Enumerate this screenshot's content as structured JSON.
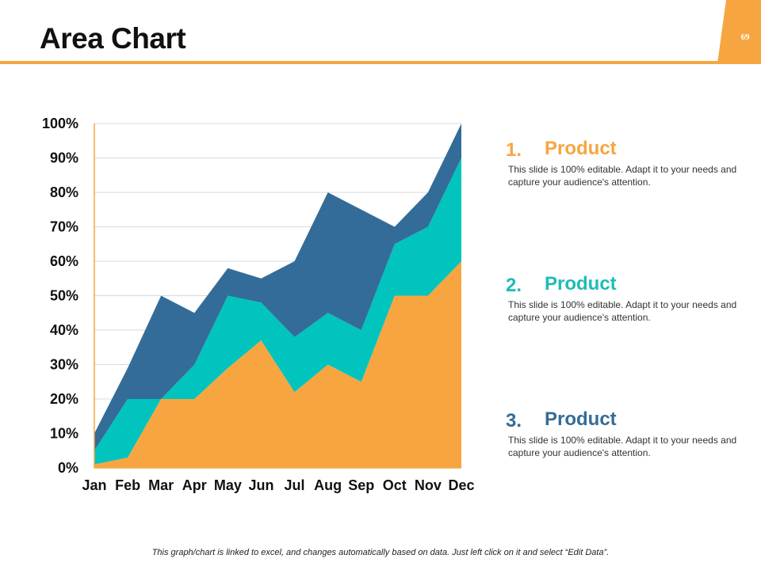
{
  "slide": {
    "title": "Area Chart",
    "page_number": "69",
    "footnote": "This graph/chart is linked to excel, and changes automatically based on data. Just left click on it and select “Edit Data”."
  },
  "legend": [
    {
      "number": "1.",
      "label": "Product",
      "description": "This slide is 100% editable. Adapt it to your needs and capture your audience's attention.",
      "color": "#f7a541"
    },
    {
      "number": "2.",
      "label": "Product",
      "description": "This slide is 100% editable. Adapt it to your needs and capture your audience's attention.",
      "color": "#1fbcb6"
    },
    {
      "number": "3.",
      "label": "Product",
      "description": "This slide is 100% editable. Adapt it to your needs and capture your audience's attention.",
      "color": "#336c98"
    }
  ],
  "chart_data": {
    "type": "area",
    "stacked": true,
    "title": "",
    "xlabel": "",
    "ylabel": "",
    "categories": [
      "Jan",
      "Feb",
      "Mar",
      "Apr",
      "May",
      "Jun",
      "Jul",
      "Aug",
      "Sep",
      "Oct",
      "Nov",
      "Dec"
    ],
    "yticks": [
      "0%",
      "10%",
      "20%",
      "30%",
      "40%",
      "50%",
      "60%",
      "70%",
      "80%",
      "90%",
      "100%"
    ],
    "ylim": [
      0,
      100
    ],
    "grid": true,
    "series": [
      {
        "name": "Product 1",
        "color": "#f7a541",
        "values": [
          1,
          3,
          20,
          20,
          29,
          37,
          22,
          30,
          25,
          50,
          50,
          60
        ]
      },
      {
        "name": "Product 2",
        "color": "#00c4bd",
        "values": [
          4,
          17,
          0,
          10,
          21,
          11,
          16,
          15,
          15,
          15,
          20,
          30
        ]
      },
      {
        "name": "Product 3",
        "color": "#336c98",
        "values": [
          5,
          9,
          30,
          15,
          8,
          7,
          22,
          35,
          35,
          5,
          10,
          10
        ]
      }
    ]
  }
}
